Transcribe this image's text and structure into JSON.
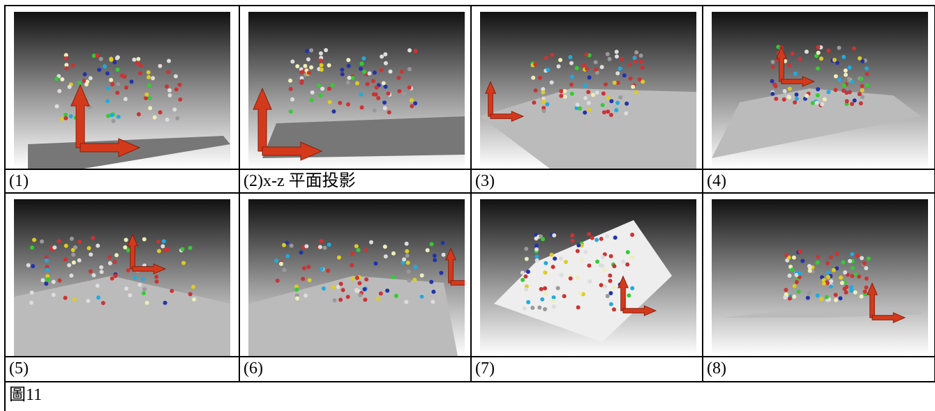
{
  "captions": [
    "(1)",
    "(2)x-z 平面投影",
    "(3)",
    "(4)",
    "(5)",
    "(6)",
    "(7)",
    "(8)"
  ],
  "figure_label": "圖11"
}
